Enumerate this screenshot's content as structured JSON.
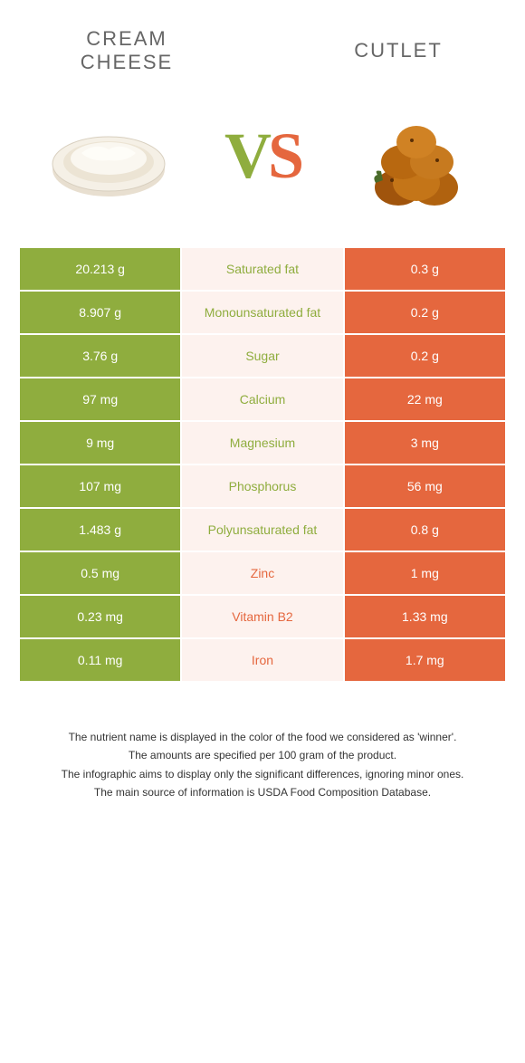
{
  "food_left": {
    "name": "Cream Cheese",
    "color": "#8fad3e"
  },
  "food_right": {
    "name": "Cutlet",
    "color": "#e5673e"
  },
  "vs_label": "VS",
  "vs_color_left": "#8fad3e",
  "vs_color_right": "#e5673e",
  "mid_bg": "#fdf2ee",
  "rows": [
    {
      "left": "20.213 g",
      "label": "Saturated fat",
      "right": "0.3 g",
      "winner": "left"
    },
    {
      "left": "8.907 g",
      "label": "Monounsaturated fat",
      "right": "0.2 g",
      "winner": "left"
    },
    {
      "left": "3.76 g",
      "label": "Sugar",
      "right": "0.2 g",
      "winner": "left"
    },
    {
      "left": "97 mg",
      "label": "Calcium",
      "right": "22 mg",
      "winner": "left"
    },
    {
      "left": "9 mg",
      "label": "Magnesium",
      "right": "3 mg",
      "winner": "left"
    },
    {
      "left": "107 mg",
      "label": "Phosphorus",
      "right": "56 mg",
      "winner": "left"
    },
    {
      "left": "1.483 g",
      "label": "Polyunsaturated fat",
      "right": "0.8 g",
      "winner": "left"
    },
    {
      "left": "0.5 mg",
      "label": "Zinc",
      "right": "1 mg",
      "winner": "right"
    },
    {
      "left": "0.23 mg",
      "label": "Vitamin B2",
      "right": "1.33 mg",
      "winner": "right"
    },
    {
      "left": "0.11 mg",
      "label": "Iron",
      "right": "1.7 mg",
      "winner": "right"
    }
  ],
  "footer": {
    "line1": "The nutrient name is displayed in the color of the food we considered as 'winner'.",
    "line2": "The amounts are specified per 100 gram of the product.",
    "line3": "The infographic aims to display only the significant differences, ignoring minor ones.",
    "line4": "The main source of information is USDA Food Composition Database."
  }
}
